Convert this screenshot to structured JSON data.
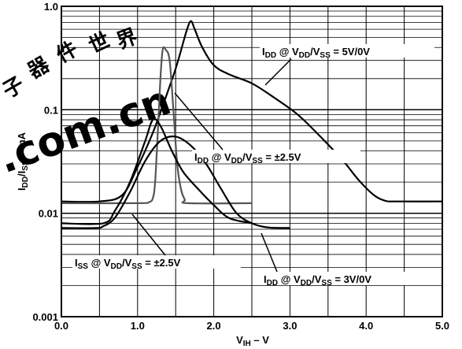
{
  "chart_data": {
    "type": "line",
    "title": "",
    "xlabel": "V_IH – V",
    "ylabel": "I_DD/I_SS – mA",
    "xlim": [
      0,
      5
    ],
    "ylim": [
      0.001,
      1
    ],
    "yscale": "log",
    "grid": true,
    "x_tick_labels": [
      "0.0",
      "1.0",
      "2.0",
      "3.0",
      "4.0",
      "5.0"
    ],
    "y_tick_labels": [
      "0.001",
      "0.01",
      "0.1",
      "1.0"
    ],
    "series": [
      {
        "name": "IDD @ VDD/VSS = 5V/0V",
        "label": {
          "main": "I",
          "s1": "DD",
          "m2": " @ V",
          "s2": "DD",
          "m3": "/V",
          "s3": "SS",
          "m4": " = 5V/0V"
        },
        "x": [
          0.0,
          0.5,
          0.8,
          1.0,
          1.2,
          1.35,
          1.5,
          1.6,
          1.65,
          1.7,
          1.75,
          1.85,
          2.0,
          2.2,
          2.5,
          2.8,
          3.1,
          3.4,
          3.7,
          3.9,
          4.1,
          4.25,
          4.4,
          5.0
        ],
        "y": [
          0.013,
          0.013,
          0.015,
          0.028,
          0.06,
          0.12,
          0.25,
          0.45,
          0.6,
          0.72,
          0.6,
          0.4,
          0.27,
          0.22,
          0.18,
          0.13,
          0.09,
          0.055,
          0.032,
          0.021,
          0.015,
          0.0132,
          0.013,
          0.013
        ]
      },
      {
        "name": "IDD @ VDD/VSS = ±2.5V",
        "label": {
          "main": "I",
          "s1": "DD",
          "m2": " @ V",
          "s2": "DD",
          "m3": "/V",
          "s3": "SS",
          "m4": " = ±2.5V"
        },
        "x": [
          0.0,
          1.0,
          1.15,
          1.2,
          1.23,
          1.27,
          1.3,
          1.33,
          1.37,
          1.42,
          1.47,
          1.52,
          1.57,
          1.62,
          1.66,
          2.5
        ],
        "y": [
          0.0125,
          0.0125,
          0.0128,
          0.014,
          0.02,
          0.07,
          0.2,
          0.38,
          0.38,
          0.3,
          0.1,
          0.03,
          0.017,
          0.0135,
          0.0125,
          0.0125
        ]
      },
      {
        "name": "ISS @ VDD/VSS = ±2.5V",
        "label": {
          "main": "I",
          "s1": "SS",
          "m2": " @ V",
          "s2": "DD",
          "m3": "/V",
          "s3": "SS",
          "m4": " = ±2.5V"
        },
        "x": [
          0.0,
          0.55,
          0.7,
          0.9,
          1.1,
          1.2,
          1.3,
          1.45,
          1.6,
          1.8,
          2.0,
          2.2,
          2.5
        ],
        "y": [
          0.008,
          0.008,
          0.0105,
          0.02,
          0.05,
          0.08,
          0.07,
          0.04,
          0.025,
          0.017,
          0.012,
          0.009,
          0.008
        ]
      },
      {
        "name": "IDD @ VDD/VSS = 3V/0V",
        "label": {
          "main": "I",
          "s1": "DD",
          "m2": " @ V",
          "s2": "DD",
          "m3": "/V",
          "s3": "SS",
          "m4": " = 3V/0V"
        },
        "x": [
          0.0,
          0.45,
          0.55,
          0.7,
          0.9,
          1.1,
          1.3,
          1.5,
          1.7,
          1.9,
          2.1,
          2.3,
          2.5,
          2.7,
          3.0
        ],
        "y": [
          0.0072,
          0.0072,
          0.0075,
          0.009,
          0.016,
          0.032,
          0.05,
          0.055,
          0.045,
          0.03,
          0.017,
          0.01,
          0.008,
          0.0073,
          0.0072
        ]
      }
    ],
    "watermark": [
      "子",
      "器",
      "件",
      "世",
      "界",
      ".com.cn"
    ]
  }
}
